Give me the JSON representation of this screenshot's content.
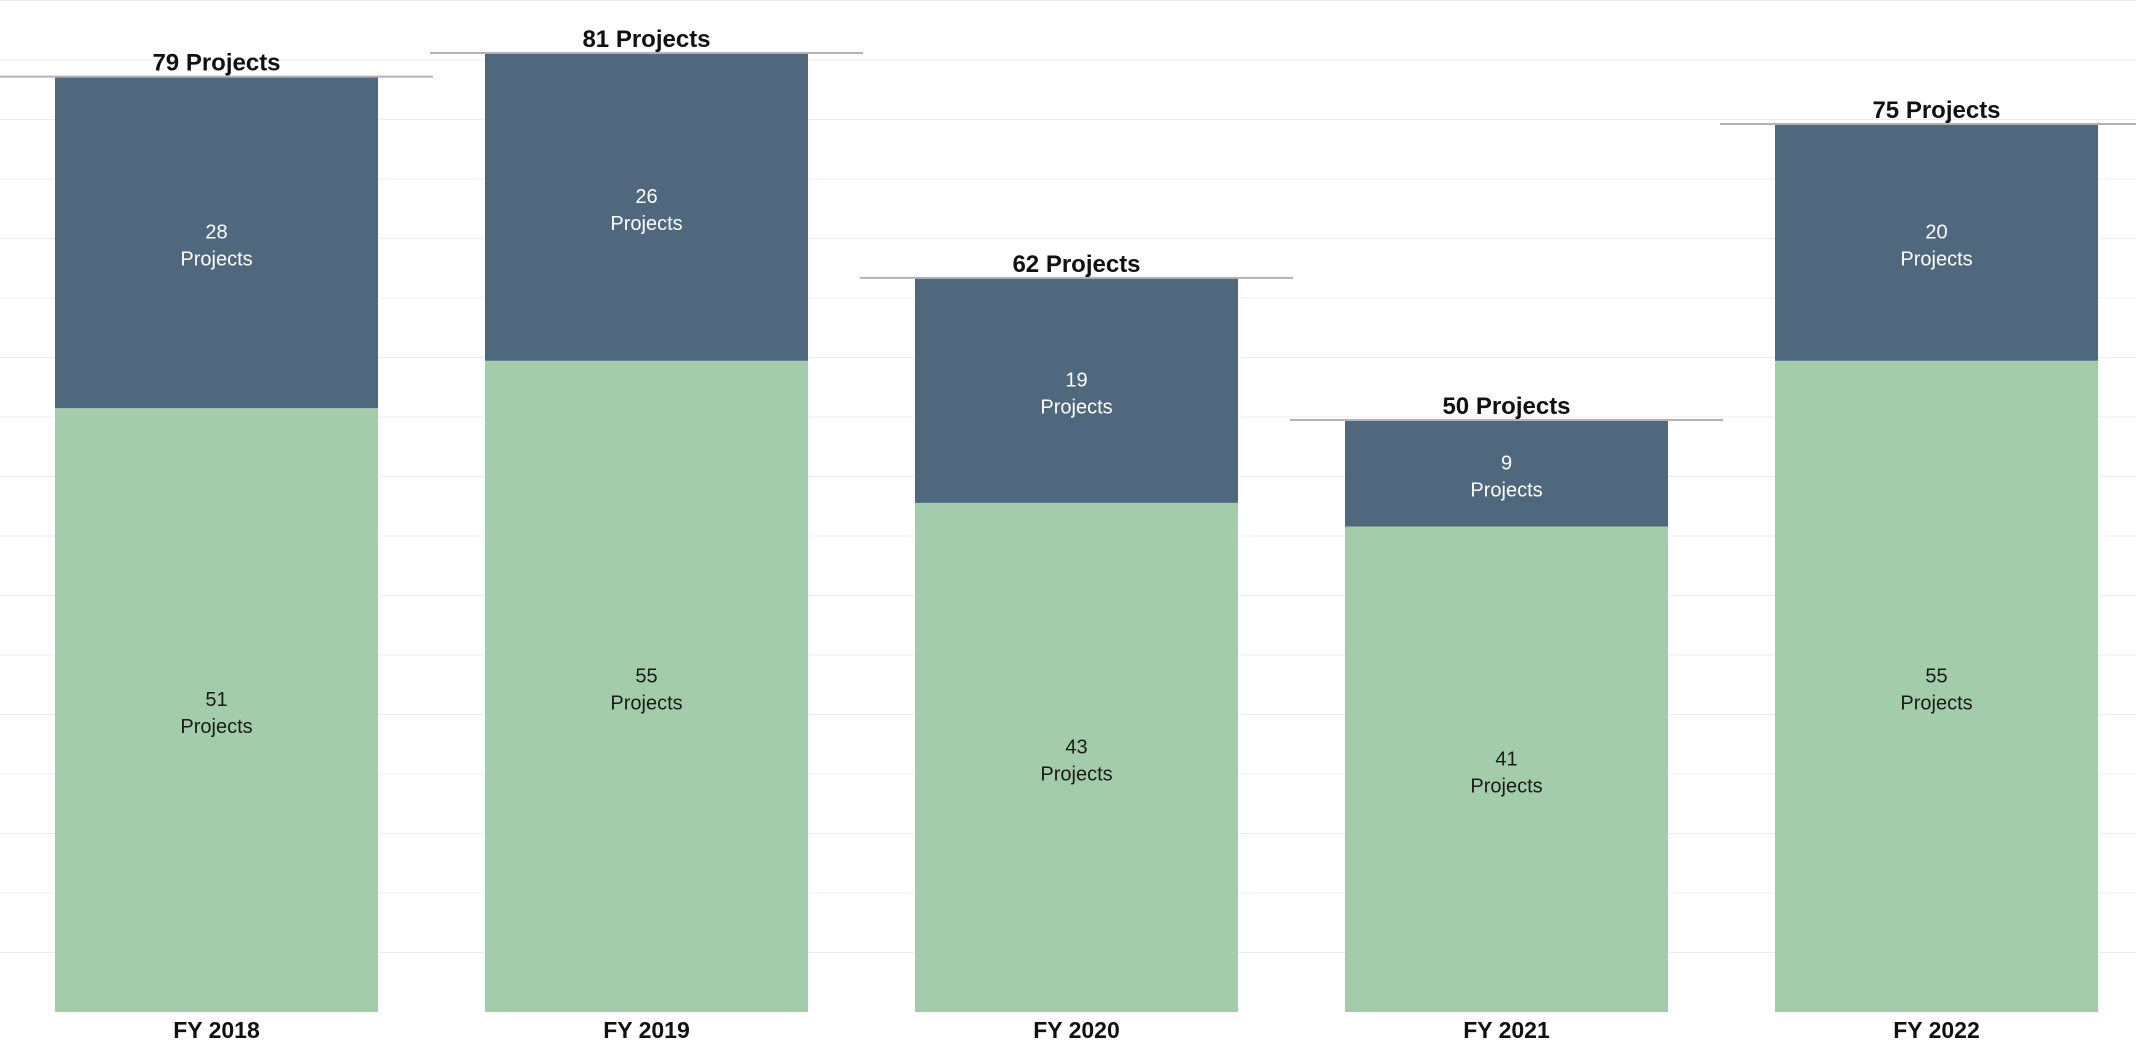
{
  "chart_data": {
    "type": "bar",
    "stacked": true,
    "categories": [
      "FY 2018",
      "FY 2019",
      "FY 2020",
      "FY 2021",
      "FY 2022"
    ],
    "series": [
      {
        "values": [
          51,
          55,
          43,
          41,
          55
        ],
        "color": "#a3cdaa",
        "label_color": "#1a1a1a"
      },
      {
        "values": [
          28,
          26,
          19,
          9,
          20
        ],
        "color": "#4f687e",
        "label_color": "#ffffff"
      }
    ],
    "totals": [
      79,
      81,
      62,
      50,
      75
    ],
    "total_labels": [
      "79 Projects",
      "81 Projects",
      "62 Projects",
      "50 Projects",
      "75 Projects"
    ],
    "segment_unit": "Projects",
    "ylim": [
      0,
      81
    ],
    "grid": true,
    "title": "",
    "xlabel": "",
    "ylabel": ""
  }
}
